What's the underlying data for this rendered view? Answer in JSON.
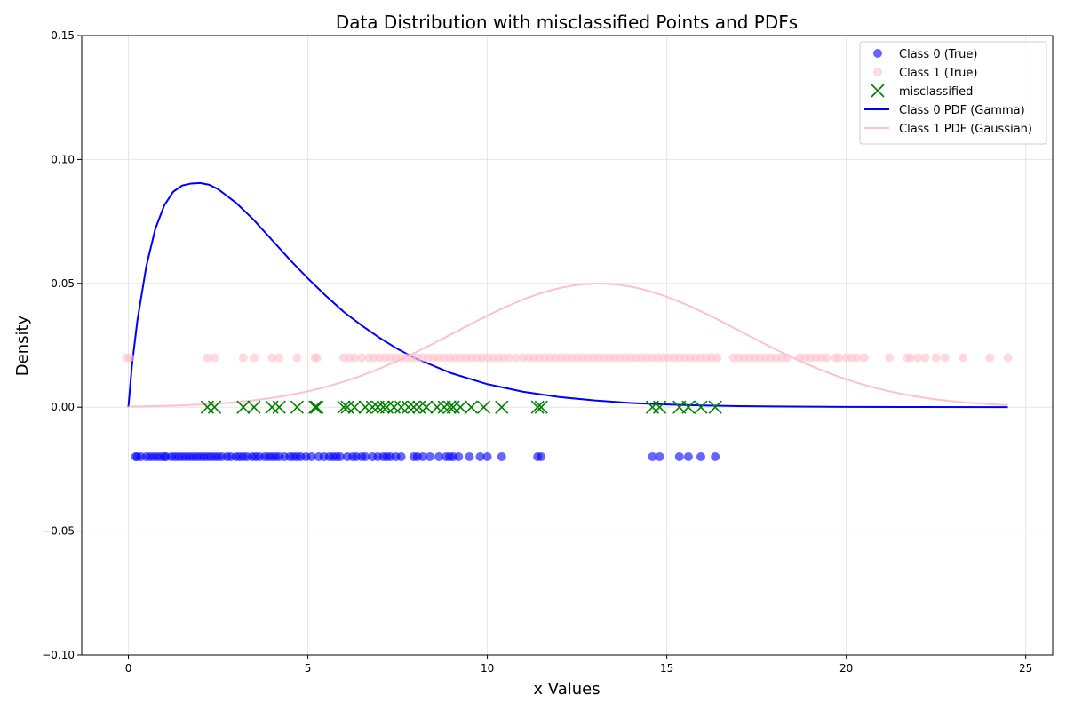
{
  "chart_data": {
    "type": "scatter",
    "title": "Data Distribution with misclassified Points and PDFs",
    "xlabel": "x Values",
    "ylabel": "Density",
    "xlim": [
      -1.3,
      25.75
    ],
    "ylim": [
      -0.1,
      0.15
    ],
    "x_ticks": [
      0,
      5,
      10,
      15,
      20,
      25
    ],
    "x_tick_labels": [
      "0",
      "5",
      "10",
      "15",
      "20",
      "25"
    ],
    "y_ticks": [
      -0.1,
      -0.05,
      0.0,
      0.05,
      0.1,
      0.15
    ],
    "y_tick_labels": [
      "−0.10",
      "−0.05",
      "0.00",
      "0.05",
      "0.10",
      "0.15"
    ],
    "grid": true,
    "legend_position": "top-right",
    "series": [
      {
        "name": "Class 0 (True)",
        "kind": "scatter",
        "marker": "circle",
        "color": "#0000ff",
        "opacity": 0.6,
        "y_const": -0.02,
        "x": [
          0.2,
          0.25,
          0.35,
          0.5,
          0.6,
          0.7,
          0.8,
          0.9,
          1.0,
          1.05,
          1.2,
          1.3,
          1.4,
          1.5,
          1.6,
          1.7,
          1.8,
          1.9,
          2.0,
          2.1,
          2.2,
          2.3,
          2.4,
          2.5,
          2.6,
          2.75,
          2.85,
          3.0,
          3.1,
          3.2,
          3.3,
          3.45,
          3.55,
          3.65,
          3.8,
          3.9,
          4.0,
          4.1,
          4.2,
          4.35,
          4.5,
          4.6,
          4.7,
          4.8,
          4.95,
          5.1,
          5.3,
          5.45,
          5.6,
          5.7,
          5.8,
          5.9,
          6.1,
          6.25,
          6.35,
          6.5,
          6.6,
          6.8,
          6.95,
          7.1,
          7.2,
          7.3,
          7.45,
          7.6,
          7.95,
          8.05,
          8.2,
          8.4,
          8.65,
          8.85,
          8.95,
          9.05,
          9.2,
          9.5,
          9.8,
          10.0,
          10.4,
          11.4,
          11.5,
          14.6,
          14.8,
          15.35,
          15.6,
          15.95,
          16.35
        ]
      },
      {
        "name": "Class 1 (True)",
        "kind": "scatter",
        "marker": "circle",
        "color": "#ffc0cb",
        "opacity": 0.6,
        "y_const": 0.02,
        "x": [
          -0.05,
          0.05,
          2.2,
          2.4,
          3.2,
          3.5,
          4.0,
          4.2,
          4.7,
          5.2,
          5.25,
          6.0,
          6.15,
          6.3,
          6.5,
          6.7,
          6.85,
          7.0,
          7.15,
          7.3,
          7.45,
          7.6,
          7.75,
          7.9,
          8.05,
          8.2,
          8.35,
          8.5,
          8.65,
          8.8,
          8.95,
          9.1,
          9.25,
          9.4,
          9.55,
          9.7,
          9.85,
          10.0,
          10.15,
          10.3,
          10.45,
          10.6,
          10.8,
          11.0,
          11.15,
          11.3,
          11.45,
          11.6,
          11.75,
          11.9,
          12.05,
          12.2,
          12.35,
          12.5,
          12.65,
          12.8,
          12.95,
          13.1,
          13.25,
          13.4,
          13.55,
          13.7,
          13.85,
          14.0,
          14.15,
          14.3,
          14.45,
          14.6,
          14.75,
          14.9,
          15.05,
          15.2,
          15.35,
          15.5,
          15.65,
          15.8,
          15.95,
          16.1,
          16.25,
          16.4,
          16.85,
          17.0,
          17.15,
          17.3,
          17.45,
          17.6,
          17.75,
          17.9,
          18.05,
          18.2,
          18.35,
          18.7,
          18.85,
          19.0,
          19.15,
          19.3,
          19.45,
          19.7,
          19.8,
          20.0,
          20.15,
          20.3,
          20.5,
          21.2,
          21.7,
          21.8,
          22.0,
          22.2,
          22.5,
          22.75,
          23.25,
          24.0,
          24.5
        ]
      },
      {
        "name": "misclassified",
        "kind": "scatter",
        "marker": "x",
        "color": "#008000",
        "y_const": 0.0,
        "x": [
          2.2,
          2.4,
          3.2,
          3.5,
          4.0,
          4.2,
          4.7,
          5.2,
          5.25,
          6.0,
          6.1,
          6.3,
          6.6,
          6.8,
          6.95,
          7.1,
          7.2,
          7.4,
          7.6,
          7.8,
          7.95,
          8.1,
          8.3,
          8.6,
          8.8,
          8.95,
          9.05,
          9.25,
          9.55,
          9.9,
          10.4,
          11.4,
          11.5,
          14.6,
          14.8,
          15.35,
          15.6,
          15.95,
          16.35
        ]
      },
      {
        "name": "Class 0 PDF (Gamma)",
        "kind": "line",
        "color": "#0000ff",
        "width": 2,
        "x": [
          0,
          0.1,
          0.25,
          0.5,
          0.75,
          1.0,
          1.25,
          1.5,
          1.75,
          2.0,
          2.25,
          2.5,
          3.0,
          3.5,
          4.0,
          4.5,
          5.0,
          5.5,
          6.0,
          6.5,
          7.0,
          7.5,
          8.0,
          9.0,
          10.0,
          11.0,
          12.0,
          13.0,
          14.0,
          15.0,
          16.0,
          17.0,
          18.0,
          20.0,
          22.0,
          24.5
        ],
        "y": [
          0.0,
          0.017,
          0.035,
          0.057,
          0.072,
          0.0815,
          0.087,
          0.0895,
          0.0903,
          0.0905,
          0.0898,
          0.088,
          0.0825,
          0.0755,
          0.0675,
          0.0595,
          0.052,
          0.045,
          0.0385,
          0.033,
          0.028,
          0.0235,
          0.0197,
          0.0137,
          0.0093,
          0.0062,
          0.0041,
          0.0027,
          0.0017,
          0.0011,
          0.0007,
          0.00045,
          0.0003,
          0.00012,
          5e-05,
          1e-05
        ]
      },
      {
        "name": "Class 1 PDF (Gaussian)",
        "kind": "line",
        "color": "#ffc0cb",
        "width": 2,
        "mean": 13.1,
        "std": 4.0,
        "peak": 0.0499,
        "x_range": [
          0,
          24.5
        ]
      }
    ]
  }
}
